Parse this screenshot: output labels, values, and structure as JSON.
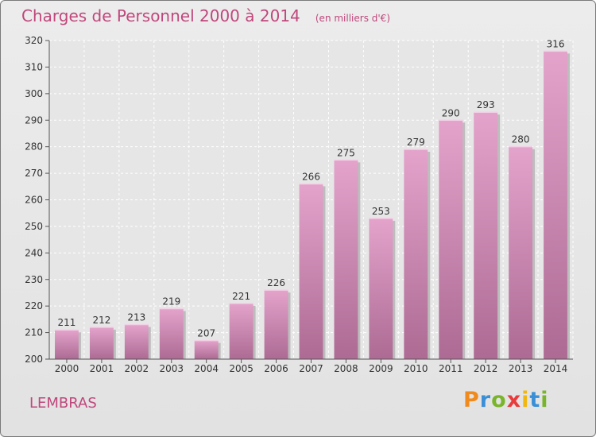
{
  "header": {
    "title": "Charges de Personnel 2000 à 2014",
    "unit": "(en milliers d'€)"
  },
  "footer": {
    "commune": "LEMBRAS",
    "logo": [
      "P",
      "r",
      "o",
      "x",
      "i",
      "t",
      "i"
    ]
  },
  "colors": {
    "title": "#c0477c",
    "bar_top": "#e3a3cb",
    "bar_bottom": "#ad6b94",
    "logo": [
      "#f08a1c",
      "#3a8fd6",
      "#79b52a",
      "#e83b3b",
      "#f2b70f",
      "#3a8fd6",
      "#79b52a"
    ]
  },
  "chart_data": {
    "type": "bar",
    "categories": [
      "2000",
      "2001",
      "2002",
      "2003",
      "2004",
      "2005",
      "2006",
      "2007",
      "2008",
      "2009",
      "2010",
      "2011",
      "2012",
      "2013",
      "2014"
    ],
    "values": [
      211,
      212,
      213,
      219,
      207,
      221,
      226,
      266,
      275,
      253,
      279,
      290,
      293,
      280,
      316
    ],
    "ylim": [
      200,
      320
    ],
    "yticks": [
      200,
      210,
      220,
      230,
      240,
      250,
      260,
      270,
      280,
      290,
      300,
      310,
      320
    ],
    "grid": true,
    "data_labels": true
  }
}
